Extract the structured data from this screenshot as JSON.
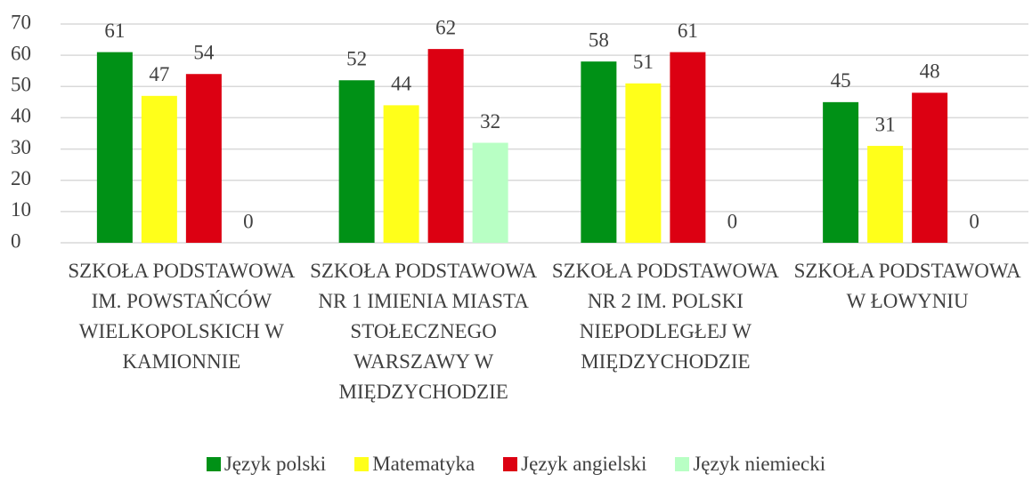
{
  "chart_data": {
    "type": "bar",
    "categories": [
      "SZKOŁA PODSTAWOWA IM. POWSTAŃCÓW WIELKOPOLSKICH W KAMIONNIE",
      "SZKOŁA PODSTAWOWA NR 1 IMIENIA MIASTA STOŁECZNEGO WARSZAWY W MIĘDZYCHODZIE",
      "SZKOŁA PODSTAWOWA NR 2 IM. POLSKI NIEPODLEGŁEJ W MIĘDZYCHODZIE",
      "SZKOŁA PODSTAWOWA W ŁOWYNIU"
    ],
    "series": [
      {
        "name": "Język polski",
        "color": "#009116",
        "values": [
          61,
          52,
          58,
          45
        ]
      },
      {
        "name": "Matematyka",
        "color": "#ffff1a",
        "values": [
          47,
          44,
          51,
          31
        ]
      },
      {
        "name": "Język angielski",
        "color": "#dc0012",
        "values": [
          54,
          62,
          61,
          48
        ]
      },
      {
        "name": "Język niemiecki",
        "color": "#b8ffc4",
        "values": [
          0,
          32,
          0,
          0
        ]
      }
    ],
    "ylim": [
      0,
      70
    ],
    "yticks": [
      0,
      10,
      20,
      30,
      40,
      50,
      60,
      70
    ],
    "grid": true,
    "legend": "bottom"
  }
}
